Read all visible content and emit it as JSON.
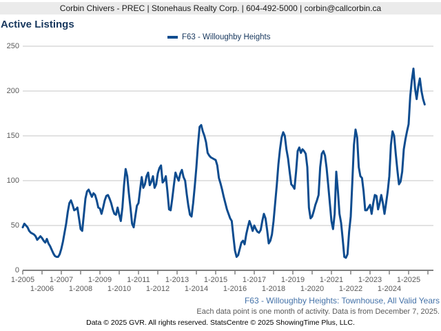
{
  "header": {
    "text": "Corbin Chivers - PREC | Stonehaus Realty Corp. | 604-492-5000 | corbin@callcorbin.ca"
  },
  "title": "Active Listings",
  "legend": {
    "label": "F63 - Willoughby Heights"
  },
  "footer": {
    "series_note": "F63 - Willoughby Heights: Townhouse, All Valid Years",
    "data_note": "Each data point is one month of activity. Data is from December 7, 2025.",
    "copyright": "Data © 2025 GVR. All rights reserved. StatsCentre © 2025 ShowingTime Plus, LLC."
  },
  "colors": {
    "line": "#0e4c8f",
    "grid": "#c6c6c6",
    "axis": "#808080",
    "tick_label": "#595959",
    "title": "#17375d",
    "footer_link": "#4472a8"
  },
  "chart_data": {
    "type": "line",
    "title": "Active Listings",
    "series_name": "F63 - Willoughby Heights",
    "x_start": "2005-01",
    "x_end": "2025-11",
    "x_unit": "month",
    "x_tick_labels": [
      "1-2005",
      "1-2006",
      "1-2007",
      "1-2008",
      "1-2009",
      "1-2010",
      "1-2011",
      "1-2012",
      "1-2013",
      "1-2014",
      "1-2015",
      "1-2016",
      "1-2017",
      "1-2018",
      "1-2019",
      "1-2020",
      "1-2021",
      "1-2022",
      "1-2023",
      "1-2024",
      "1-2025"
    ],
    "y_ticks": [
      0,
      50,
      100,
      150,
      200,
      250
    ],
    "ylim": [
      0,
      250
    ],
    "grid": "horizontal",
    "legend_position": "top",
    "values": [
      48,
      52,
      50,
      48,
      44,
      42,
      41,
      40,
      38,
      34,
      36,
      38,
      36,
      33,
      31,
      35,
      30,
      27,
      23,
      19,
      16,
      15,
      15,
      18,
      24,
      32,
      42,
      52,
      65,
      75,
      78,
      73,
      67,
      68,
      70,
      58,
      46,
      44,
      62,
      80,
      88,
      90,
      86,
      82,
      86,
      84,
      78,
      70,
      69,
      63,
      70,
      78,
      83,
      84,
      80,
      75,
      68,
      63,
      62,
      70,
      62,
      55,
      70,
      95,
      113,
      105,
      86,
      70,
      52,
      48,
      60,
      72,
      75,
      90,
      104,
      92,
      96,
      105,
      109,
      95,
      99,
      105,
      92,
      96,
      108,
      114,
      117,
      98,
      100,
      105,
      88,
      68,
      67,
      80,
      95,
      109,
      104,
      100,
      108,
      112,
      104,
      100,
      85,
      72,
      62,
      60,
      75,
      94,
      115,
      140,
      160,
      162,
      155,
      150,
      143,
      131,
      128,
      126,
      125,
      124,
      123,
      117,
      103,
      97,
      90,
      82,
      75,
      68,
      63,
      58,
      55,
      38,
      22,
      15,
      17,
      24,
      31,
      33,
      29,
      40,
      48,
      55,
      50,
      44,
      50,
      46,
      43,
      42,
      45,
      55,
      63,
      58,
      45,
      30,
      33,
      40,
      55,
      75,
      95,
      118,
      135,
      148,
      154,
      150,
      135,
      125,
      110,
      96,
      94,
      91,
      110,
      133,
      137,
      131,
      135,
      133,
      130,
      115,
      70,
      58,
      60,
      66,
      73,
      78,
      84,
      115,
      130,
      133,
      128,
      114,
      95,
      75,
      55,
      46,
      63,
      110,
      89,
      63,
      53,
      35,
      15,
      14,
      18,
      43,
      60,
      99,
      140,
      157,
      148,
      115,
      105,
      103,
      88,
      67,
      67,
      70,
      73,
      63,
      75,
      84,
      83,
      68,
      75,
      84,
      75,
      63,
      75,
      88,
      105,
      140,
      155,
      150,
      130,
      112,
      96,
      99,
      110,
      135,
      146,
      155,
      163,
      194,
      212,
      225,
      203,
      191,
      205,
      214,
      200,
      191,
      185
    ]
  }
}
